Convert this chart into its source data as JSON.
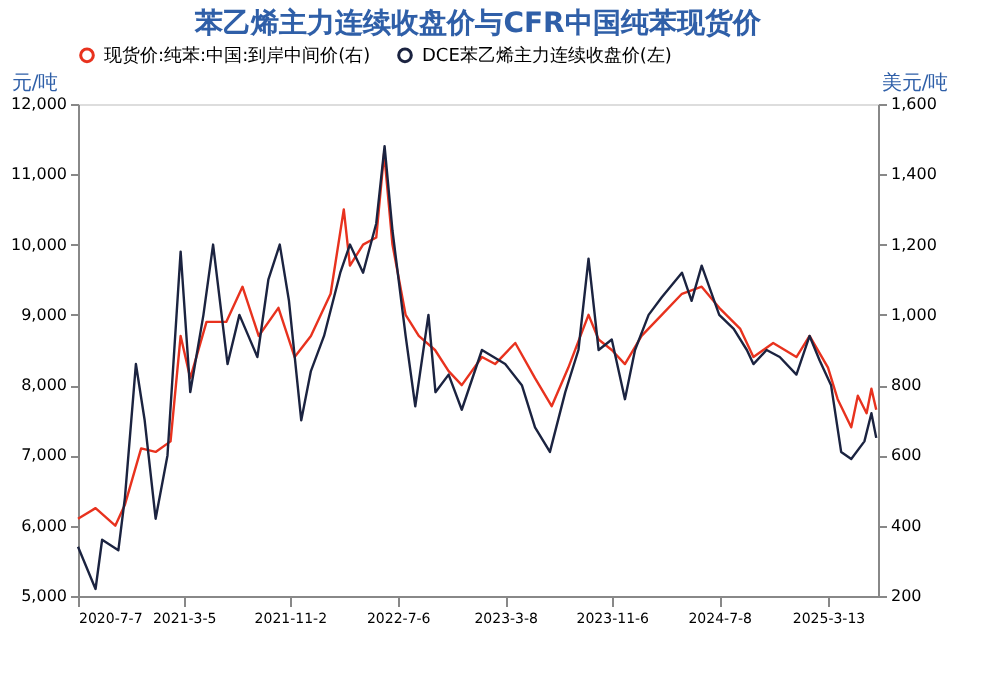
{
  "chart_data": {
    "type": "line",
    "title": "苯乙烯主力连续收盘价与CFR中国纯苯现货价",
    "ylabel": "元/吨",
    "y2label": "美元/吨",
    "xlim": [
      "2020-07-07",
      "2025-07-05"
    ],
    "xticks": [
      {
        "value": "2020-07-07",
        "label": "2020-7-7"
      },
      {
        "value": "2021-03-05",
        "label": "2021-3-5"
      },
      {
        "value": "2021-11-02",
        "label": "2021-11-2"
      },
      {
        "value": "2022-07-06",
        "label": "2022-7-6"
      },
      {
        "value": "2023-03-08",
        "label": "2023-3-8"
      },
      {
        "value": "2023-11-06",
        "label": "2023-11-6"
      },
      {
        "value": "2024-07-08",
        "label": "2024-7-8"
      },
      {
        "value": "2025-03-13",
        "label": "2025-3-13"
      }
    ],
    "ylim": [
      5000,
      12000
    ],
    "yticks": [
      {
        "value": 5000,
        "label": "5,000"
      },
      {
        "value": 6000,
        "label": "6,000"
      },
      {
        "value": 7000,
        "label": "7,000"
      },
      {
        "value": 8000,
        "label": "8,000"
      },
      {
        "value": 9000,
        "label": "9,000"
      },
      {
        "value": 10000,
        "label": "10,000"
      },
      {
        "value": 11000,
        "label": "11,000"
      },
      {
        "value": 12000,
        "label": "12,000"
      }
    ],
    "y2lim": [
      200,
      1600
    ],
    "y2ticks": [
      200,
      400,
      600,
      800,
      {
        "value": 1000,
        "label": "1,000"
      },
      {
        "value": 1200,
        "label": "1,200"
      },
      {
        "value": 1400,
        "label": "1,400"
      },
      {
        "value": 1600,
        "label": "1,600"
      }
    ],
    "legend": "top",
    "grid": false,
    "marker": "none",
    "line_style": "solid",
    "series": [
      {
        "name": "现货价:纯苯:中国:到岸中间价(右)",
        "color": "#e8321e",
        "axis": "y2",
        "x": [
          "2020-07-07",
          "2020-08-16",
          "2020-09-30",
          "2020-10-22",
          "2020-11-28",
          "2020-12-31",
          "2021-02-03",
          "2021-02-26",
          "2021-03-20",
          "2021-04-26",
          "2021-06-10",
          "2021-07-17",
          "2021-08-23",
          "2021-10-07",
          "2021-11-13",
          "2021-12-20",
          "2022-02-03",
          "2022-03-05",
          "2022-03-19",
          "2022-04-18",
          "2022-05-18",
          "2022-06-05",
          "2022-06-24",
          "2022-07-24",
          "2022-08-23",
          "2022-09-29",
          "2022-10-30",
          "2022-11-29",
          "2023-01-14",
          "2023-02-13",
          "2023-03-31",
          "2023-05-15",
          "2023-06-22",
          "2023-07-30",
          "2023-09-14",
          "2023-10-07",
          "2023-11-06",
          "2023-12-06",
          "2024-01-13",
          "2024-02-28",
          "2024-04-14",
          "2024-05-29",
          "2024-07-08",
          "2024-08-25",
          "2024-09-24",
          "2024-11-08",
          "2024-12-31",
          "2025-01-30",
          "2025-03-13",
          "2025-04-04",
          "2025-05-05",
          "2025-05-20",
          "2025-06-09",
          "2025-06-20",
          "2025-07-01"
        ],
        "values": [
          420,
          450,
          400,
          460,
          620,
          610,
          640,
          940,
          820,
          980,
          980,
          1080,
          940,
          1020,
          880,
          940,
          1060,
          1300,
          1140,
          1200,
          1220,
          1460,
          1200,
          1000,
          940,
          900,
          840,
          800,
          880,
          860,
          920,
          820,
          740,
          850,
          1000,
          930,
          900,
          860,
          940,
          1000,
          1060,
          1080,
          1020,
          960,
          880,
          920,
          880,
          940,
          850,
          760,
          680,
          770,
          720,
          790,
          730
        ]
      },
      {
        "name": "DCE苯乙烯主力连续收盘价(左)",
        "color": "#1b2340",
        "x": [
          "2020-07-07",
          "2020-08-16",
          "2020-08-31",
          "2020-10-07",
          "2020-10-22",
          "2020-11-16",
          "2020-12-06",
          "2020-12-31",
          "2021-01-27",
          "2021-02-26",
          "2021-03-20",
          "2021-04-19",
          "2021-05-11",
          "2021-06-13",
          "2021-07-10",
          "2021-08-20",
          "2021-09-14",
          "2021-10-10",
          "2021-10-31",
          "2021-11-28",
          "2021-12-20",
          "2022-01-19",
          "2022-02-25",
          "2022-03-19",
          "2022-04-18",
          "2022-05-18",
          "2022-06-06",
          "2022-06-24",
          "2022-07-24",
          "2022-08-15",
          "2022-09-14",
          "2022-09-30",
          "2022-10-30",
          "2022-11-29",
          "2023-01-14",
          "2023-03-08",
          "2023-04-15",
          "2023-05-15",
          "2023-06-18",
          "2023-07-23",
          "2023-08-22",
          "2023-09-14",
          "2023-10-07",
          "2023-11-06",
          "2023-12-06",
          "2023-12-29",
          "2024-01-29",
          "2024-02-28",
          "2024-04-14",
          "2024-05-06",
          "2024-05-29",
          "2024-07-08",
          "2024-08-10",
          "2024-09-09",
          "2024-09-24",
          "2024-10-24",
          "2024-11-23",
          "2024-12-31",
          "2025-01-30",
          "2025-02-22",
          "2025-03-20",
          "2025-04-12",
          "2025-05-05",
          "2025-06-04",
          "2025-06-20",
          "2025-07-01"
        ],
        "values": [
          5700,
          5100,
          5800,
          5650,
          6400,
          8300,
          7500,
          6100,
          7000,
          9900,
          7900,
          9000,
          10000,
          8300,
          9000,
          8400,
          9500,
          10000,
          9200,
          7500,
          8200,
          8700,
          9600,
          10000,
          9600,
          10300,
          11400,
          10200,
          8700,
          7700,
          9000,
          7900,
          8150,
          7650,
          8500,
          8300,
          8000,
          7400,
          7050,
          7900,
          8500,
          9800,
          8500,
          8650,
          7800,
          8500,
          9000,
          9250,
          9600,
          9200,
          9700,
          9000,
          8800,
          8500,
          8300,
          8500,
          8400,
          8150,
          8700,
          8350,
          8000,
          7050,
          6950,
          7200,
          7600,
          7250
        ]
      }
    ]
  }
}
